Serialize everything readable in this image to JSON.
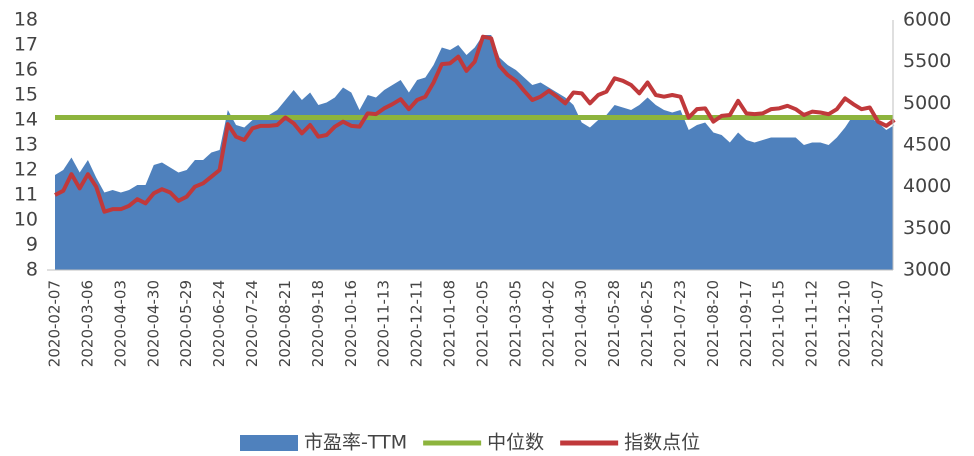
{
  "chart_data": {
    "type": "area-line",
    "categories": [
      "2020-02-07",
      null,
      null,
      null,
      "2020-03-06",
      null,
      null,
      null,
      "2020-04-03",
      null,
      null,
      null,
      "2020-04-30",
      null,
      null,
      null,
      "2020-05-29",
      null,
      null,
      null,
      "2020-06-24",
      null,
      null,
      null,
      "2020-07-24",
      null,
      null,
      null,
      "2020-08-21",
      null,
      null,
      null,
      "2020-09-18",
      null,
      null,
      null,
      "2020-10-16",
      null,
      null,
      null,
      "2020-11-13",
      null,
      null,
      null,
      "2020-12-11",
      null,
      null,
      null,
      "2021-01-08",
      null,
      null,
      null,
      "2021-02-05",
      null,
      null,
      null,
      "2021-03-05",
      null,
      null,
      null,
      "2021-04-02",
      null,
      null,
      null,
      "2021-04-30",
      null,
      null,
      null,
      "2021-05-28",
      null,
      null,
      null,
      "2021-06-25",
      null,
      null,
      null,
      "2021-07-23",
      null,
      null,
      null,
      "2021-08-20",
      null,
      null,
      null,
      "2021-09-17",
      null,
      null,
      null,
      "2021-10-15",
      null,
      null,
      null,
      "2021-11-12",
      null,
      null,
      null,
      "2021-12-10",
      null,
      null,
      null,
      "2022-01-07",
      null,
      null
    ],
    "series": [
      {
        "name": "市盈率-TTM",
        "kind": "area",
        "color": "#4f81bd",
        "values": [
          11.8,
          12.0,
          12.5,
          11.9,
          12.4,
          11.7,
          11.1,
          11.2,
          11.1,
          11.2,
          11.4,
          11.4,
          12.2,
          12.3,
          12.1,
          11.9,
          12.0,
          12.4,
          12.4,
          12.7,
          12.8,
          14.4,
          13.8,
          13.7,
          14.0,
          14.1,
          14.2,
          14.4,
          14.8,
          15.2,
          14.8,
          15.1,
          14.6,
          14.7,
          14.9,
          15.3,
          15.1,
          14.4,
          15.0,
          14.9,
          15.2,
          15.4,
          15.6,
          15.1,
          15.6,
          15.7,
          16.2,
          16.9,
          16.8,
          17.0,
          16.6,
          16.9,
          17.4,
          17.4,
          16.5,
          16.2,
          16.0,
          15.7,
          15.4,
          15.5,
          15.3,
          15.1,
          14.9,
          14.6,
          13.9,
          13.7,
          14.0,
          14.2,
          14.6,
          14.5,
          14.4,
          14.6,
          14.9,
          14.6,
          14.4,
          14.3,
          14.4,
          13.6,
          13.8,
          13.9,
          13.5,
          13.4,
          13.1,
          13.5,
          13.2,
          13.1,
          13.2,
          13.3,
          13.3,
          13.3,
          13.3,
          13.0,
          13.1,
          13.1,
          13.0,
          13.3,
          13.7,
          14.2,
          14.2,
          14.1,
          13.9,
          13.6,
          13.8
        ]
      },
      {
        "name": "中位数",
        "kind": "hline",
        "color": "#8db43d",
        "value": 14.1
      },
      {
        "name": "指数点位",
        "kind": "line",
        "axis": "y2",
        "color": "#c0393b",
        "values": [
          3900,
          3950,
          4150,
          3980,
          4150,
          4000,
          3700,
          3730,
          3730,
          3770,
          3850,
          3800,
          3920,
          3970,
          3930,
          3830,
          3880,
          4000,
          4040,
          4120,
          4200,
          4750,
          4600,
          4560,
          4700,
          4730,
          4730,
          4740,
          4830,
          4760,
          4640,
          4740,
          4600,
          4620,
          4720,
          4780,
          4730,
          4720,
          4880,
          4870,
          4940,
          4990,
          5050,
          4930,
          5040,
          5080,
          5250,
          5470,
          5480,
          5560,
          5390,
          5500,
          5800,
          5780,
          5450,
          5340,
          5270,
          5150,
          5040,
          5080,
          5150,
          5080,
          5000,
          5130,
          5120,
          5000,
          5100,
          5140,
          5300,
          5270,
          5220,
          5120,
          5250,
          5100,
          5080,
          5100,
          5080,
          4830,
          4930,
          4940,
          4780,
          4850,
          4860,
          5030,
          4880,
          4870,
          4880,
          4930,
          4940,
          4970,
          4930,
          4860,
          4900,
          4890,
          4870,
          4930,
          5060,
          4990,
          4930,
          4950,
          4780,
          4730,
          4800
        ]
      }
    ],
    "ylim": [
      8,
      18
    ],
    "yticks": [
      8,
      9,
      10,
      11,
      12,
      13,
      14,
      15,
      16,
      17,
      18
    ],
    "y2lim": [
      3000,
      6000
    ],
    "y2ticks": [
      3000,
      3500,
      4000,
      4500,
      5000,
      5500,
      6000
    ],
    "legend": "bottom"
  }
}
